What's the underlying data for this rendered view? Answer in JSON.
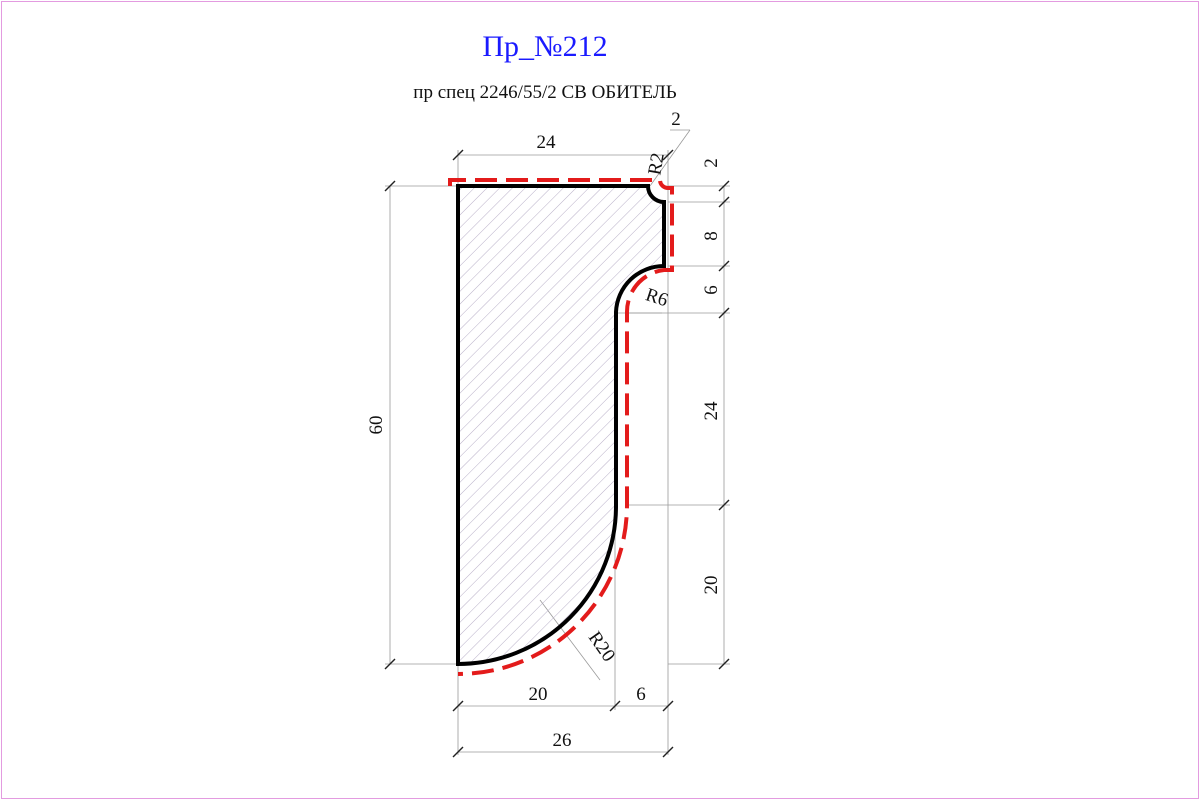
{
  "drawing": {
    "title": "Пр_№212",
    "subtitle": "пр спец 2246/55/2  СВ ОБИТЕЛЬ",
    "colors": {
      "frame": "#e39be0",
      "title": "#1a1aff",
      "outline": "#000000",
      "cut_path": "#e31b1b",
      "hatch": "#b9b0c8"
    }
  },
  "dimensions": {
    "top_width": "24",
    "notch_width": "2",
    "radius_top": "R2",
    "right_2": "2",
    "right_8": "8",
    "right_6": "6",
    "right_24": "24",
    "right_20": "20",
    "total_height": "60",
    "radius_middle": "R6",
    "radius_bottom": "R20",
    "bottom_20": "20",
    "bottom_6": "6",
    "total_width": "26"
  }
}
